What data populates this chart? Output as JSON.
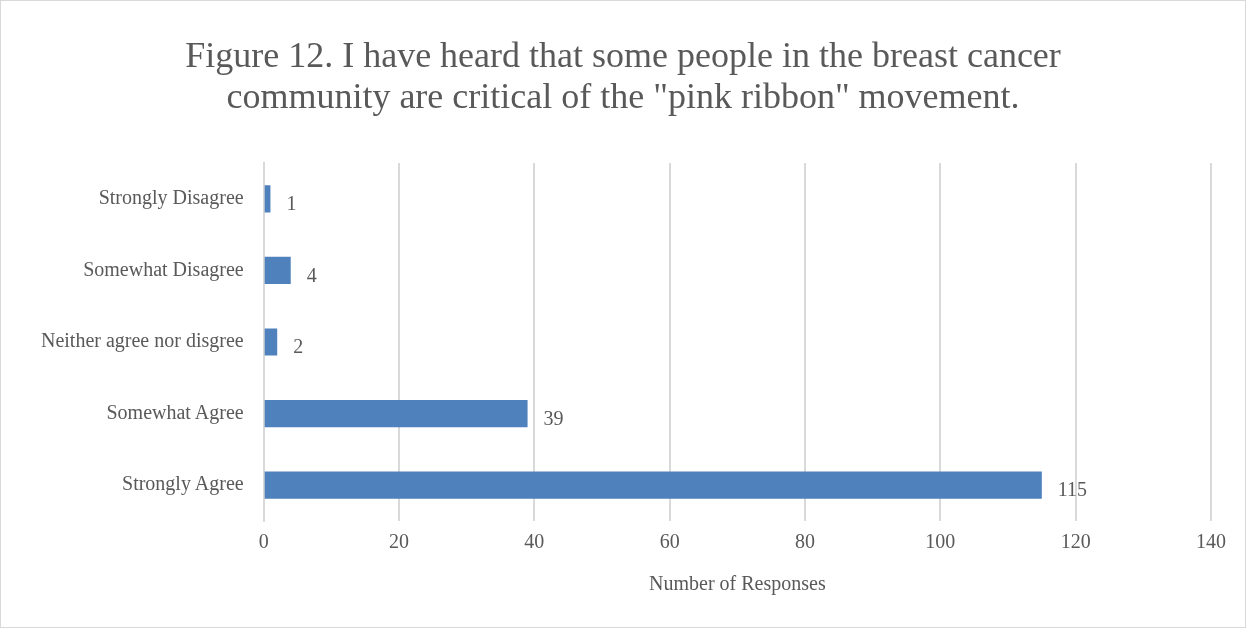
{
  "chart_data": {
    "type": "bar",
    "orientation": "horizontal",
    "title": "Figure 12. I have heard that some people in the breast cancer community are critical of the \"pink ribbon\" movement.",
    "categories": [
      "Strongly Disagree",
      "Somewhat Disagree",
      "Neither agree nor disgree",
      "Somewhat Agree",
      "Strongly Agree"
    ],
    "values": [
      1,
      4,
      2,
      39,
      115
    ],
    "color": "#4f81bd",
    "xlim": [
      0,
      140
    ],
    "xticks": [
      0,
      20,
      40,
      60,
      80,
      100,
      120,
      140
    ],
    "xlabel": "Number of Responses",
    "grid": "x",
    "legend": false,
    "data_labels": true
  }
}
